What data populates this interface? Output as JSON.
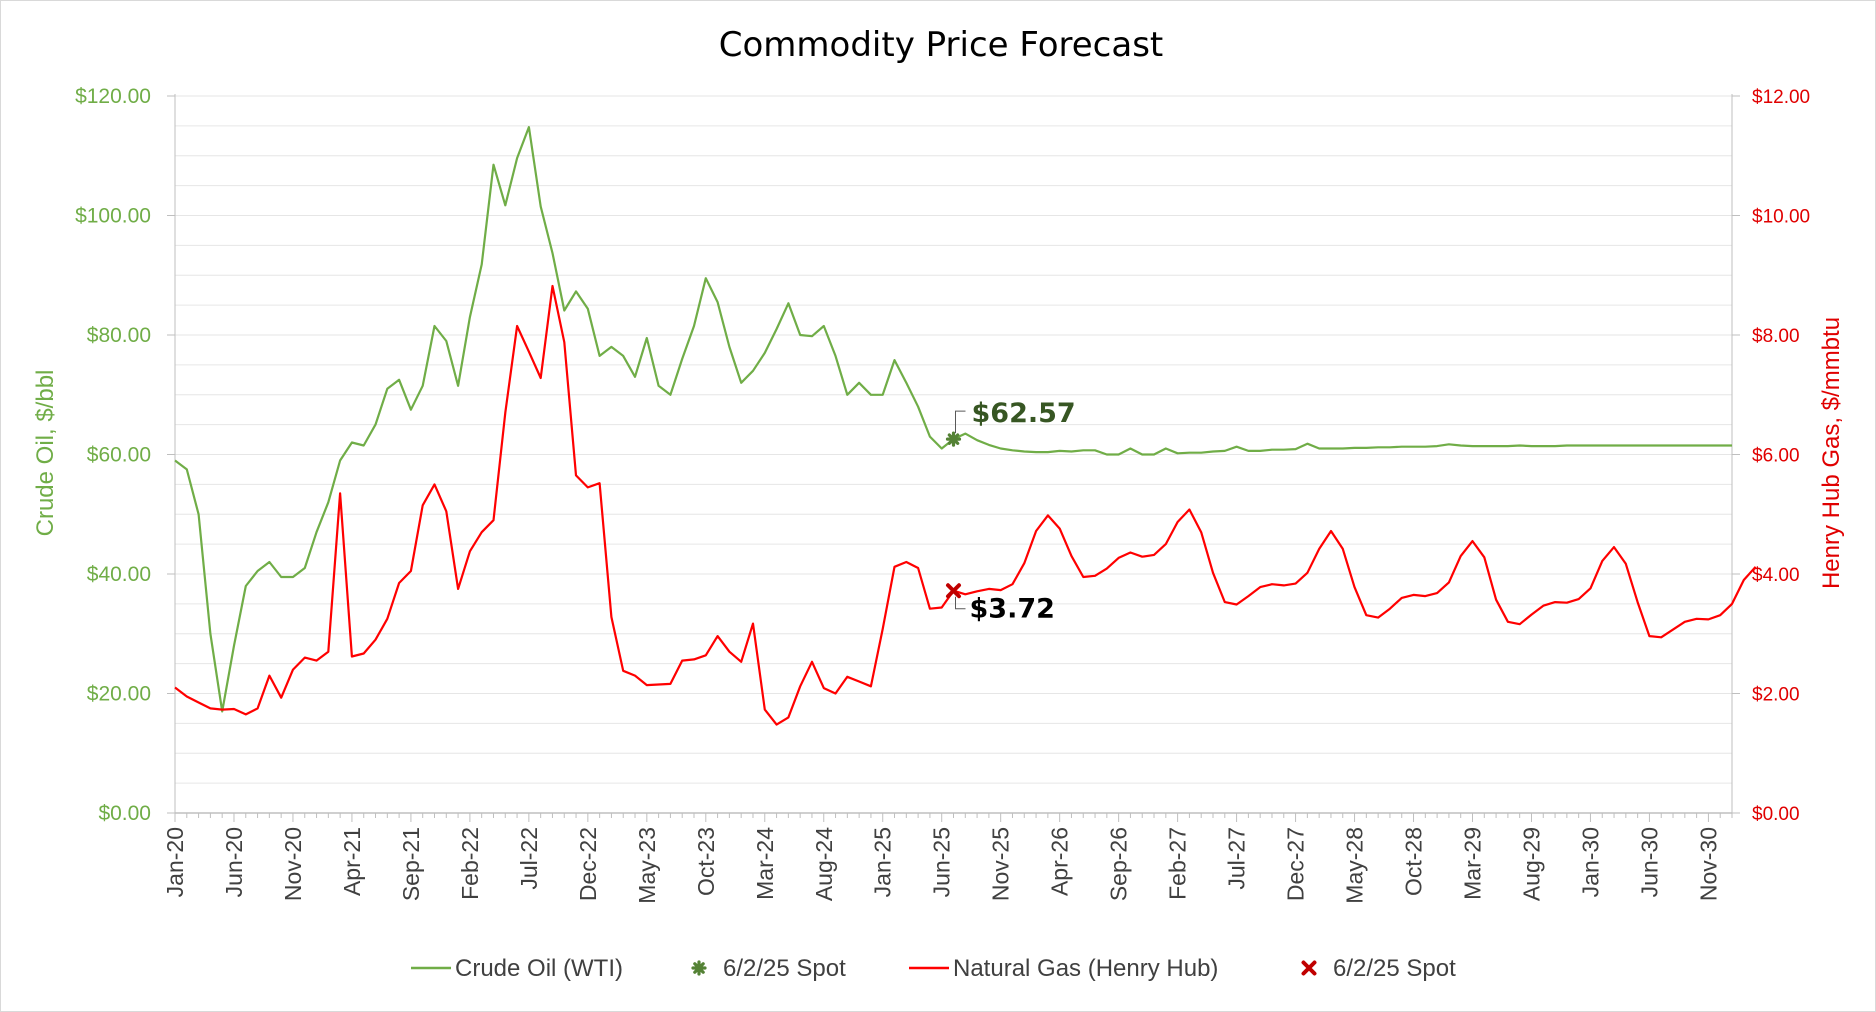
{
  "chart_data": {
    "type": "line",
    "title": "Commodity Price Forecast",
    "y_left": {
      "label": "Crude Oil, $/bbl",
      "range": [
        0,
        120
      ],
      "ticks": [
        "$0.00",
        "$20.00",
        "$40.00",
        "$60.00",
        "$80.00",
        "$100.00",
        "$120.00"
      ]
    },
    "y_right": {
      "label": "Henry Hub Gas, $/mmbtu",
      "range": [
        0,
        12
      ],
      "ticks": [
        "$0.00",
        "$2.00",
        "$4.00",
        "$6.00",
        "$8.00",
        "$10.00",
        "$12.00"
      ]
    },
    "x_axis": {
      "start": "Jan-20",
      "periods": 133,
      "ticks": [
        "Jan-20",
        "Jun-20",
        "Nov-20",
        "Apr-21",
        "Sep-21",
        "Feb-22",
        "Jul-22",
        "Dec-22",
        "May-23",
        "Oct-23",
        "Mar-24",
        "Aug-24",
        "Jan-25",
        "Jun-25",
        "Nov-25",
        "Apr-26",
        "Sep-26",
        "Feb-27",
        "Jul-27",
        "Dec-27",
        "May-28",
        "Oct-28",
        "Mar-29",
        "Aug-29",
        "Jan-30",
        "Jun-30",
        "Nov-30"
      ]
    },
    "grid": "horizontal minor",
    "legend_position": "bottom",
    "series": [
      {
        "name": "Crude Oil (WTI)",
        "axis": "left",
        "color": "#70ad47",
        "values": [
          59,
          57.5,
          50,
          30,
          17,
          28,
          38,
          40.5,
          42,
          39.5,
          39.5,
          41,
          47,
          52,
          59,
          62,
          61.5,
          65,
          71,
          72.5,
          67.5,
          71.5,
          81.5,
          79,
          71.5,
          83,
          91.8,
          108.5,
          101.7,
          109.6,
          114.8,
          101.5,
          93.7,
          84.1,
          87.3,
          84.4,
          76.5,
          78,
          76.5,
          73,
          79.5,
          71.5,
          70,
          76,
          81.5,
          89.5,
          85.5,
          78,
          72,
          74,
          77,
          81,
          85.3,
          80,
          79.8,
          81.5,
          76.5,
          70,
          72,
          70,
          70,
          75.8,
          72,
          68,
          63,
          61,
          62.57,
          63.5,
          62.4,
          61.6,
          61,
          60.7,
          60.5,
          60.4,
          60.4,
          60.6,
          60.5,
          60.7,
          60.7,
          60,
          60,
          61,
          60,
          60,
          61,
          60.2,
          60.3,
          60.3,
          60.5,
          60.6,
          61.3,
          60.6,
          60.6,
          60.8,
          60.8,
          60.9,
          61.8,
          61,
          61,
          61,
          61.1,
          61.1,
          61.2,
          61.2,
          61.3,
          61.3,
          61.3,
          61.4,
          61.7,
          61.5,
          61.4,
          61.4,
          61.4,
          61.4,
          61.5,
          61.4,
          61.4,
          61.4,
          61.5,
          61.5,
          61.5,
          61.5,
          61.5,
          61.5,
          61.5,
          61.5,
          61.5,
          61.5,
          61.5,
          61.5,
          61.5,
          61.5,
          61.5
        ]
      },
      {
        "name": "Natural Gas (Henry Hub)",
        "axis": "right",
        "color": "#ff0000",
        "values": [
          2.1,
          1.95,
          1.85,
          1.75,
          1.73,
          1.74,
          1.65,
          1.75,
          2.3,
          1.93,
          2.4,
          2.6,
          2.55,
          2.7,
          5.35,
          2.62,
          2.67,
          2.9,
          3.25,
          3.85,
          4.05,
          5.15,
          5.5,
          5.05,
          3.75,
          4.38,
          4.7,
          4.9,
          6.7,
          8.15,
          7.72,
          7.28,
          8.82,
          7.88,
          5.65,
          5.45,
          5.52,
          3.28,
          2.38,
          2.3,
          2.14,
          2.15,
          2.16,
          2.55,
          2.57,
          2.64,
          2.96,
          2.7,
          2.53,
          3.17,
          1.73,
          1.48,
          1.6,
          2.12,
          2.53,
          2.09,
          2,
          2.28,
          2.2,
          2.12,
          3.08,
          4.12,
          4.2,
          4.1,
          3.42,
          3.44,
          3.72,
          3.66,
          3.71,
          3.75,
          3.73,
          3.83,
          4.18,
          4.72,
          4.98,
          4.76,
          4.3,
          3.95,
          3.97,
          4.09,
          4.27,
          4.36,
          4.29,
          4.32,
          4.5,
          4.87,
          5.08,
          4.7,
          4.02,
          3.53,
          3.49,
          3.63,
          3.78,
          3.83,
          3.81,
          3.84,
          4.02,
          4.42,
          4.72,
          4.42,
          3.78,
          3.31,
          3.27,
          3.42,
          3.6,
          3.65,
          3.63,
          3.68,
          3.86,
          4.3,
          4.55,
          4.28,
          3.57,
          3.2,
          3.16,
          3.32,
          3.47,
          3.53,
          3.52,
          3.58,
          3.76,
          4.22,
          4.45,
          4.17,
          3.53,
          2.96,
          2.94,
          3.07,
          3.2,
          3.25,
          3.24,
          3.31,
          3.5,
          3.9,
          4.12
        ]
      }
    ],
    "markers": [
      {
        "name": "6/2/25 Spot",
        "axis": "left",
        "index": 66,
        "value": 62.57,
        "label": "$62.57",
        "color": "#548235",
        "label_color": "#375623"
      },
      {
        "name": "6/2/25 Spot",
        "axis": "right",
        "index": 66,
        "value": 3.72,
        "label": "$3.72",
        "color": "#c00000",
        "label_color": "#000000"
      }
    ]
  },
  "legend": [
    {
      "label": "Crude Oil (WTI)",
      "kind": "line",
      "color": "#70ad47"
    },
    {
      "label": "6/2/25 Spot",
      "kind": "marker",
      "color": "#548235"
    },
    {
      "label": "Natural Gas (Henry Hub)",
      "kind": "line",
      "color": "#ff0000"
    },
    {
      "label": "6/2/25 Spot",
      "kind": "marker",
      "color": "#c00000"
    }
  ]
}
